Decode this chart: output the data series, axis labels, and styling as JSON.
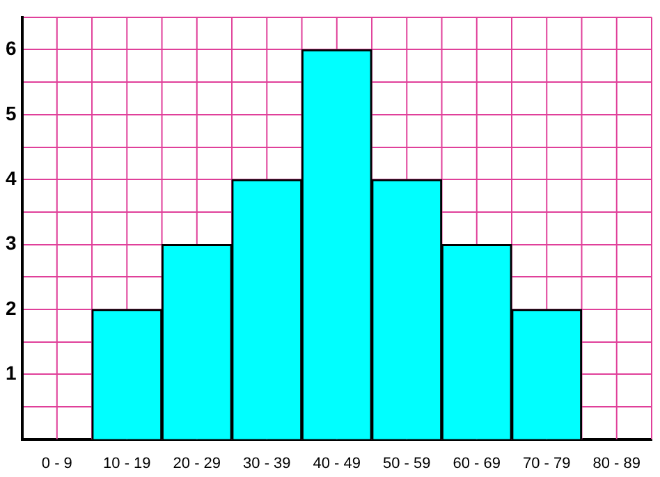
{
  "chart_data": {
    "type": "bar",
    "categories": [
      "0 - 9",
      "10 - 19",
      "20 - 29",
      "30 - 39",
      "40 - 49",
      "50 - 59",
      "60 - 69",
      "70 - 79",
      "80 - 89"
    ],
    "values": [
      0,
      2,
      3,
      4,
      6,
      4,
      3,
      2,
      0
    ],
    "color": "#00ffff",
    "ylim": [
      0,
      6.5
    ],
    "yticks": [
      {
        "value": 0.5,
        "label": null
      },
      1,
      {
        "value": 1.5,
        "label": null
      },
      2,
      {
        "value": 2.5,
        "label": null
      },
      3,
      {
        "value": 3.5,
        "label": null
      },
      4,
      {
        "value": 4.5,
        "label": null
      },
      5,
      {
        "value": 5.5,
        "label": null
      },
      6,
      {
        "value": 6.5,
        "label": null
      }
    ],
    "grid": true
  }
}
